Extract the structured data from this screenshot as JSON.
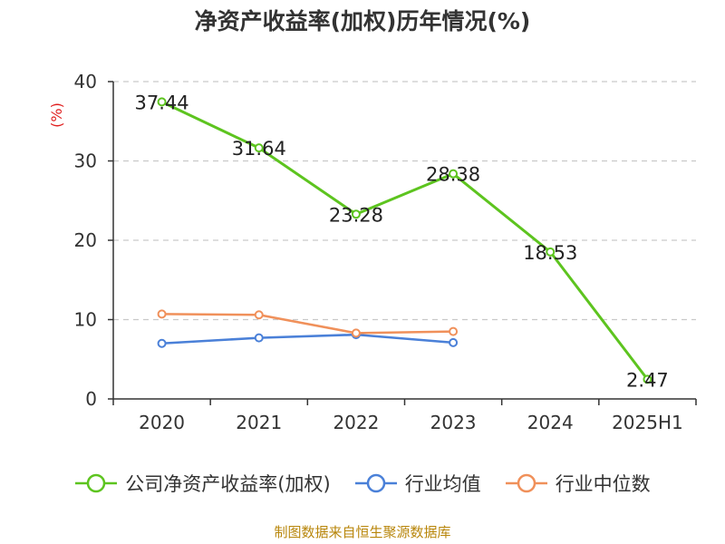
{
  "title": "净资产收益率(加权)历年情况(%)",
  "source_note": "制图数据来自恒生聚源数据库",
  "chart_data": {
    "type": "line",
    "title": "净资产收益率(加权)历年情况(%)",
    "y_unit_label": "(%)",
    "categories": [
      "2020",
      "2021",
      "2022",
      "2023",
      "2024",
      "2025H1"
    ],
    "ylim": [
      0,
      40
    ],
    "y_ticks": [
      "0",
      "10",
      "20",
      "30",
      "40"
    ],
    "grid": true,
    "legend_position": "bottom",
    "series": [
      {
        "name": "公司净资产收益率(加权)",
        "color": "#5dc41f",
        "values": [
          37.44,
          31.64,
          23.28,
          28.38,
          18.53,
          2.47
        ],
        "data_labels": [
          "37.44",
          "31.64",
          "23.28",
          "28.38",
          "18.53",
          "2.47"
        ]
      },
      {
        "name": "行业均值",
        "color": "#4a80d8",
        "values": [
          7.0,
          7.7,
          8.1,
          7.1,
          null,
          null
        ]
      },
      {
        "name": "行业中位数",
        "color": "#f0905a",
        "values": [
          10.7,
          10.6,
          8.3,
          8.5,
          null,
          null
        ]
      }
    ]
  },
  "colors": {
    "unit_label": "#e02020",
    "source_note": "#b8860b"
  }
}
